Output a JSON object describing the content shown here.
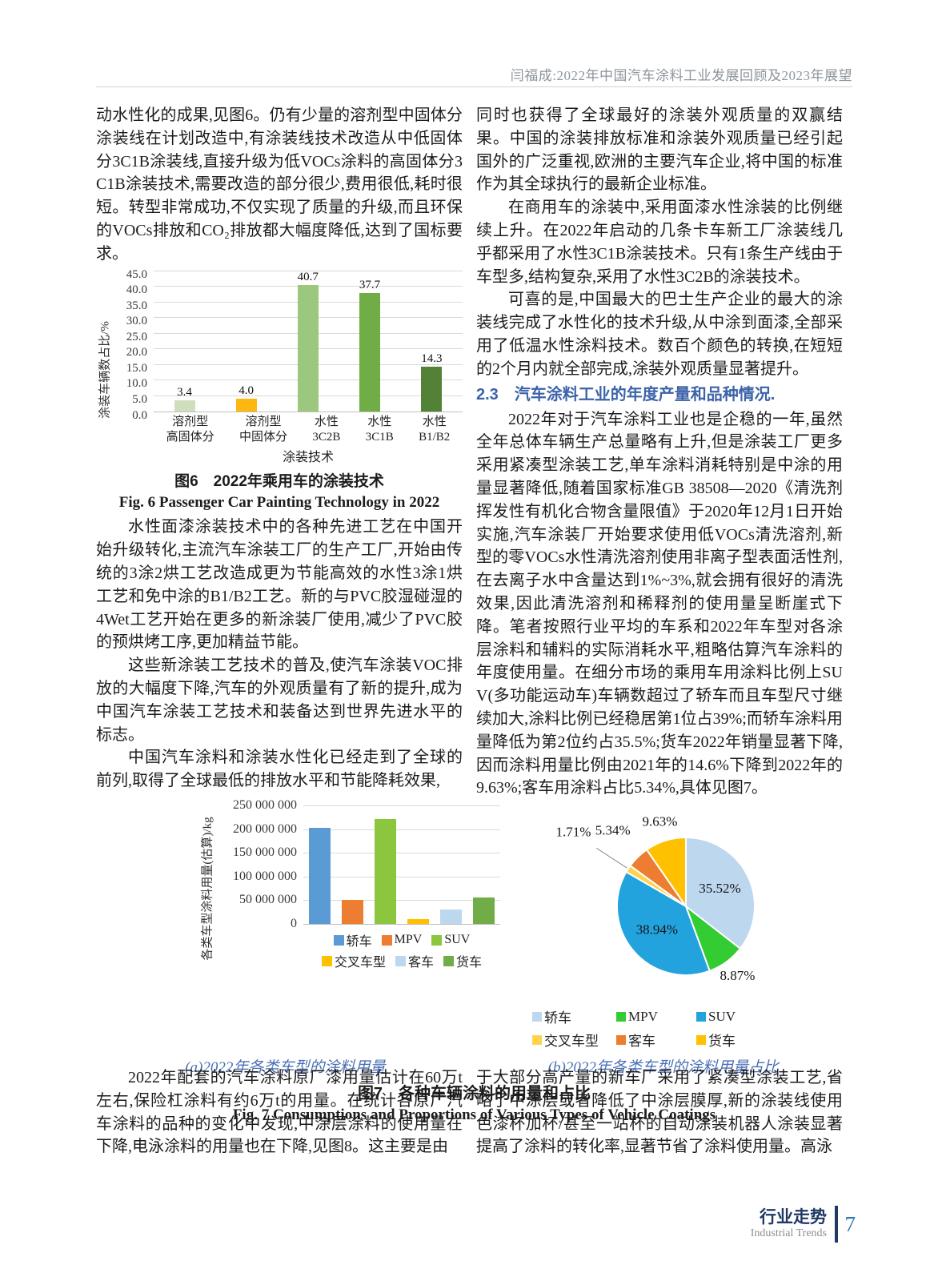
{
  "header": {
    "running_head": "闫福成:2022年中国汽车涂料工业发展回顾及2023年展望"
  },
  "footer": {
    "cn": "行业走势",
    "en": "Industrial Trends",
    "page_number": "7"
  },
  "left": {
    "p1": "动水性化的成果,见图6。仍有少量的溶剂型中固体分涂装线在计划改造中,有涂装线技术改造从中低固体分3C1B涂装线,直接升级为低VOCs涂料的高固体分3C1B涂装技术,需要改造的部分很少,费用很低,耗时很短。转型非常成功,不仅实现了质量的升级,而且环保的VOCs排放和CO₂排放都大幅度降低,达到了国标要求。",
    "fig6_caption_cn": "图6　2022年乘用车的涂装技术",
    "fig6_caption_en": "Fig. 6  Passenger Car Painting Technology in 2022",
    "p2": "水性面漆涂装技术中的各种先进工艺在中国开始升级转化,主流汽车涂装工厂的生产工厂,开始由传统的3涂2烘工艺改造成更为节能高效的水性3涂1烘工艺和免中涂的B1/B2工艺。新的与PVC胶湿碰湿的4Wet工艺开始在更多的新涂装厂使用,减少了PVC胶的预烘烤工序,更加精益节能。",
    "p3": "这些新涂装工艺技术的普及,使汽车涂装VOC排放的大幅度下降,汽车的外观质量有了新的提升,成为中国汽车涂装工艺技术和装备达到世界先进水平的标志。",
    "p4": "中国汽车涂料和涂装水性化已经走到了全球的前列,取得了全球最低的排放水平和节能降耗效果,"
  },
  "right": {
    "p1": "同时也获得了全球最好的涂装外观质量的双赢结果。中国的涂装排放标准和涂装外观质量已经引起国外的广泛重视,欧洲的主要汽车企业,将中国的标准作为其全球执行的最新企业标准。",
    "p2": "在商用车的涂装中,采用面漆水性涂装的比例继续上升。在2022年启动的几条卡车新工厂涂装线几乎都采用了水性3C1B涂装技术。只有1条生产线由于车型多,结构复杂,采用了水性3C2B的涂装技术。",
    "p3": "可喜的是,中国最大的巴士生产企业的最大的涂装线完成了水性化的技术升级,从中涂到面漆,全部采用了低温水性涂料技术。数百个颜色的转换,在短短的2个月内就全部完成,涂装外观质量显著提升。",
    "heading": "2.3　汽车涂料工业的年度产量和品种情况.",
    "p4": "2022年对于汽车涂料工业也是企稳的一年,虽然全年总体车辆生产总量略有上升,但是涂装工厂更多采用紧凑型涂装工艺,单车涂料消耗特别是中涂的用量显著降低,随着国家标准GB 38508—2020《清洗剂挥发性有机化合物含量限值》于2020年12月1日开始实施,汽车涂装厂开始要求使用低VOCs清洗溶剂,新型的零VOCs水性清洗溶剂使用非离子型表面活性剂,在去离子水中含量达到1%~3%,就会拥有很好的清洗效果,因此清洗溶剂和稀释剂的使用量呈断崖式下降。笔者按照行业平均的车系和2022年车型对各涂层涂料和辅料的实际消耗水平,粗略估算汽车涂料的年度使用量。在细分市场的乘用车用涂料比例上SUV(多功能运动车)车辆数超过了轿车而且车型尺寸继续加大,涂料比例已经稳居第1位占39%;而轿车涂料用量降低为第2位约占35.5%;货车2022年销量显著下降,因而涂料用量比例由2021年的14.6%下降到2022年的9.63%;客车用涂料占比5.34%,具体见图7。"
  },
  "figure7": {
    "caption_a": "(a)2022年各类车型的涂料用量",
    "caption_b": "(b)2022年各类车型的涂料用量占比",
    "caption_cn": "图7　各种车辆涂料的用量和占比",
    "caption_en": "Fig. 7  Consumptions and Proportions of Various Types of Vehicle Coatings"
  },
  "bottom": {
    "left_p": "2022年配套的汽车涂料原厂漆用量估计在60万t左右,保险杠涂料有约6万t的用量。在统计各原厂汽车涂料的品种的变化中发现,中涂层涂料的使用量在下降,电泳涂料的用量也在下降,见图8。这主要是由",
    "right_p": "于大部分高产量的新车厂采用了紧凑型涂装工艺,省略了中涂层或者降低了中涂层膜厚,新的涂装线使用色漆杯加杯/甚至一站杯的自动涂装机器人涂装显著提高了涂料的转化率,显著节省了涂料使用量。高泳"
  },
  "chart_data": [
    {
      "id": "fig6",
      "type": "bar",
      "title": "图6 2022年乘用车的涂装技术",
      "categories": [
        "溶剂型\n高固体分",
        "溶剂型\n中固体分",
        "水性\n3C2B",
        "水性\n3C1B",
        "水性\nB1/B2"
      ],
      "values": [
        3.4,
        4.0,
        40.7,
        37.7,
        14.3
      ],
      "data_labels": [
        "3.4",
        "4.0",
        "40.7",
        "37.7",
        "14.3"
      ],
      "bar_colors": [
        "#cfdebb",
        "#fcb810",
        "#9cc87e",
        "#71ad47",
        "#538135"
      ],
      "xlabel": "涂装技术",
      "ylabel": "涂装车辆数占比/%",
      "ylim": [
        0,
        45
      ],
      "yticks": [
        "45.0",
        "40.0",
        "35.0",
        "30.0",
        "25.0",
        "20.0",
        "15.0",
        "10.0",
        "5.0",
        "0.0"
      ],
      "grid": true,
      "legend_position": "none"
    },
    {
      "id": "fig7a",
      "type": "bar",
      "title": "(a)2022年各类车型的涂料用量",
      "categories": [
        "轿车",
        "MPV",
        "SUV",
        "交叉车型",
        "客车",
        "货车"
      ],
      "values": [
        202000000,
        51000000,
        222000000,
        10000000,
        31000000,
        55000000
      ],
      "bar_colors": [
        "#5b9bd5",
        "#ed7d31",
        "#8cc63f",
        "#ffc000",
        "#bdd7ee",
        "#70ad47"
      ],
      "xlabel": "",
      "ylabel": "各类车型涂料用量(估算)/kg",
      "ylim": [
        0,
        250000000
      ],
      "yticks": [
        "250 000 000",
        "200 000 000",
        "150 000 000",
        "100 000 000",
        "50 000 000",
        "0"
      ],
      "grid": true,
      "legend_position": "bottom"
    },
    {
      "id": "fig7b",
      "type": "pie",
      "title": "(b)2022年各类车型的涂料用量占比",
      "labels": [
        "轿车",
        "MPV",
        "SUV",
        "交叉车型",
        "客车",
        "货车"
      ],
      "values": [
        35.52,
        8.87,
        38.94,
        1.71,
        5.34,
        9.63
      ],
      "slice_labels": [
        "35.52%",
        "8.87%",
        "38.94%",
        "1.71%",
        "5.34%",
        "9.63%"
      ],
      "colors": [
        "#bdd7ee",
        "#33cc33",
        "#23a3dd",
        "#ffd34d",
        "#ed7d31",
        "#ffc000"
      ],
      "legend_rows": [
        [
          "轿车",
          "MPV",
          "SUV"
        ],
        [
          "交叉车型",
          "客车",
          "货车"
        ]
      ],
      "legend_position": "bottom"
    }
  ]
}
